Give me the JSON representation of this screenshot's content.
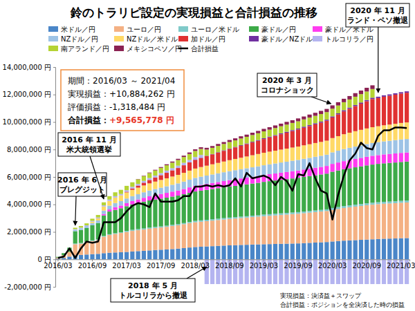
{
  "chart_data": {
    "type": "bar",
    "title": "鈴のトラリピ設定の実現損益と合計損益の推移",
    "stacked": true,
    "grid": false,
    "legend": "top",
    "categories": [
      "2016/03",
      null,
      null,
      null,
      null,
      null,
      "2016/09",
      null,
      null,
      null,
      null,
      null,
      "2017/03",
      null,
      null,
      null,
      null,
      null,
      "2017/09",
      null,
      null,
      null,
      null,
      null,
      "2018/03",
      null,
      null,
      null,
      null,
      null,
      "2018/09",
      null,
      null,
      null,
      null,
      null,
      "2019/03",
      null,
      null,
      null,
      null,
      null,
      "2019/09",
      null,
      null,
      null,
      null,
      null,
      "2020/03",
      null,
      null,
      null,
      null,
      null,
      "2020/09",
      null,
      null,
      null,
      null,
      null,
      "2021/03",
      null
    ],
    "ylim": [
      -2000000,
      14000000
    ],
    "yticks": [
      {
        "value": -2000000,
        "label": "-2,000,000 円"
      },
      {
        "value": 0,
        "label": "0 円"
      },
      {
        "value": 2000000,
        "label": "2,000,000 円"
      },
      {
        "value": 4000000,
        "label": "4,000,000 円"
      },
      {
        "value": 6000000,
        "label": "6,000,000 円"
      },
      {
        "value": 8000000,
        "label": "8,000,000 円"
      },
      {
        "value": 10000000,
        "label": "10,000,000 円"
      },
      {
        "value": 12000000,
        "label": "12,000,000 円"
      },
      {
        "value": 14000000,
        "label": "14,000,000 円"
      }
    ],
    "series": [
      {
        "name": "米ドル／円",
        "color": "#4a86c8",
        "values": [
          50000,
          100000,
          200000,
          300000,
          320000,
          350000,
          380000,
          400000,
          450000,
          480000,
          500000,
          520000,
          540000,
          570000,
          600000,
          620000,
          650000,
          680000,
          700000,
          720000,
          750000,
          780000,
          820000,
          860000,
          900000,
          920000,
          940000,
          960000,
          980000,
          1000000,
          1020000,
          1030000,
          1050000,
          1060000,
          1080000,
          1090000,
          1100000,
          1110000,
          1120000,
          1130000,
          1140000,
          1150000,
          1160000,
          1180000,
          1200000,
          1220000,
          1240000,
          1260000,
          1300000,
          1330000,
          1360000,
          1380000,
          1400000,
          1420000,
          1440000,
          1460000,
          1480000,
          1500000,
          1510000,
          1520000,
          1540000,
          1550000
        ]
      },
      {
        "name": "ユーロ／円",
        "color": "#f4b183",
        "values": [
          80000,
          200000,
          350000,
          800000,
          820000,
          880000,
          950000,
          1000000,
          1200000,
          1300000,
          1350000,
          1400000,
          1450000,
          1500000,
          1520000,
          1550000,
          1580000,
          1600000,
          1620000,
          1650000,
          1680000,
          1700000,
          1740000,
          1780000,
          1800000,
          1820000,
          1840000,
          1860000,
          1880000,
          1900000,
          1920000,
          1940000,
          1960000,
          1980000,
          2000000,
          2020000,
          2040000,
          2060000,
          2080000,
          2100000,
          2120000,
          2140000,
          2160000,
          2180000,
          2200000,
          2220000,
          2240000,
          2260000,
          2300000,
          2340000,
          2380000,
          2410000,
          2440000,
          2470000,
          2500000,
          2520000,
          2540000,
          2550000,
          2560000,
          2570000,
          2580000,
          2590000
        ]
      },
      {
        "name": "ユーロ／米ドル",
        "color": "#7fcac9",
        "values": [
          0,
          0,
          0,
          50000,
          50000,
          50000,
          50000,
          50000,
          50000,
          50000,
          50000,
          50000,
          80000,
          80000,
          80000,
          80000,
          80000,
          80000,
          80000,
          80000,
          80000,
          80000,
          80000,
          80000,
          100000,
          100000,
          100000,
          100000,
          100000,
          100000,
          100000,
          100000,
          100000,
          100000,
          100000,
          100000,
          120000,
          120000,
          120000,
          120000,
          120000,
          120000,
          120000,
          120000,
          120000,
          120000,
          120000,
          120000,
          140000,
          140000,
          140000,
          140000,
          140000,
          140000,
          140000,
          140000,
          140000,
          140000,
          140000,
          140000,
          140000,
          140000
        ]
      },
      {
        "name": "豪ドル／円",
        "color": "#3daa48",
        "values": [
          50000,
          150000,
          300000,
          900000,
          950000,
          1000000,
          1100000,
          1200000,
          1500000,
          1650000,
          1700000,
          1750000,
          1800000,
          1850000,
          1900000,
          1950000,
          1980000,
          2000000,
          2020000,
          2040000,
          2060000,
          2080000,
          2100000,
          2120000,
          2140000,
          2160000,
          2180000,
          2200000,
          2220000,
          2240000,
          2260000,
          2280000,
          2300000,
          2320000,
          2340000,
          2360000,
          2380000,
          2400000,
          2420000,
          2440000,
          2460000,
          2480000,
          2500000,
          2520000,
          2540000,
          2560000,
          2580000,
          2600000,
          2640000,
          2660000,
          2680000,
          2700000,
          2720000,
          2740000,
          2760000,
          2780000,
          2790000,
          2800000,
          2810000,
          2820000,
          2830000,
          2840000
        ]
      },
      {
        "name": "豪ドル／米ドル",
        "color": "#ff3cf0",
        "values": [
          0,
          0,
          0,
          0,
          0,
          0,
          0,
          0,
          100000,
          150000,
          200000,
          200000,
          220000,
          240000,
          260000,
          280000,
          300000,
          320000,
          340000,
          350000,
          360000,
          370000,
          380000,
          400000,
          410000,
          420000,
          430000,
          440000,
          450000,
          460000,
          470000,
          480000,
          480000,
          490000,
          490000,
          500000,
          500000,
          510000,
          510000,
          520000,
          520000,
          530000,
          530000,
          540000,
          540000,
          550000,
          550000,
          560000,
          570000,
          580000,
          590000,
          600000,
          610000,
          620000,
          630000,
          640000,
          640000,
          650000,
          650000,
          660000,
          660000,
          660000
        ]
      },
      {
        "name": "NZドル／円",
        "color": "#9dc3e6",
        "values": [
          0,
          0,
          0,
          100000,
          120000,
          140000,
          160000,
          180000,
          250000,
          280000,
          300000,
          320000,
          340000,
          360000,
          380000,
          400000,
          420000,
          440000,
          460000,
          480000,
          500000,
          520000,
          540000,
          560000,
          580000,
          600000,
          610000,
          620000,
          630000,
          640000,
          650000,
          660000,
          670000,
          680000,
          690000,
          700000,
          710000,
          720000,
          730000,
          740000,
          750000,
          760000,
          770000,
          780000,
          790000,
          800000,
          810000,
          820000,
          840000,
          860000,
          880000,
          890000,
          900000,
          910000,
          920000,
          930000,
          940000,
          950000,
          960000,
          970000,
          980000,
          980000
        ]
      },
      {
        "name": "NZドル／米ドル",
        "color": "#ffd966",
        "values": [
          0,
          0,
          0,
          0,
          0,
          0,
          100000,
          150000,
          300000,
          350000,
          400000,
          420000,
          440000,
          460000,
          480000,
          500000,
          520000,
          540000,
          560000,
          580000,
          600000,
          620000,
          640000,
          660000,
          680000,
          700000,
          720000,
          740000,
          760000,
          780000,
          800000,
          820000,
          840000,
          860000,
          880000,
          900000,
          910000,
          920000,
          930000,
          940000,
          950000,
          960000,
          970000,
          980000,
          990000,
          1000000,
          1010000,
          1020000,
          1040000,
          1060000,
          1080000,
          1100000,
          1120000,
          1130000,
          1140000,
          1150000,
          1160000,
          1170000,
          1180000,
          1190000,
          1200000,
          1210000
        ]
      },
      {
        "name": "加ドル／円",
        "color": "#e03131",
        "values": [
          0,
          0,
          0,
          0,
          0,
          0,
          0,
          0,
          0,
          0,
          0,
          0,
          50000,
          100000,
          150000,
          200000,
          250000,
          300000,
          350000,
          400000,
          450000,
          500000,
          550000,
          600000,
          630000,
          660000,
          690000,
          720000,
          750000,
          780000,
          810000,
          840000,
          870000,
          900000,
          930000,
          960000,
          1000000,
          1040000,
          1080000,
          1120000,
          1160000,
          1200000,
          1240000,
          1280000,
          1320000,
          1360000,
          1400000,
          1450000,
          1500000,
          1580000,
          1660000,
          1740000,
          1820000,
          1900000,
          1980000,
          2050000,
          2050000,
          2080000,
          2100000,
          2120000,
          2140000,
          2160000
        ]
      },
      {
        "name": "豪ドル／NZドル",
        "color": "#7030a0",
        "values": [
          0,
          0,
          0,
          0,
          0,
          0,
          0,
          0,
          0,
          0,
          0,
          0,
          0,
          0,
          0,
          0,
          0,
          0,
          0,
          0,
          0,
          0,
          0,
          0,
          20000,
          20000,
          30000,
          30000,
          30000,
          40000,
          40000,
          40000,
          50000,
          50000,
          50000,
          60000,
          60000,
          60000,
          60000,
          70000,
          70000,
          70000,
          70000,
          80000,
          80000,
          80000,
          80000,
          80000,
          80000,
          80000,
          90000,
          90000,
          90000,
          90000,
          90000,
          100000,
          100000,
          100000,
          100000,
          100000,
          100000,
          100000
        ]
      },
      {
        "name": "トルコリラ／円",
        "color": "#b4b4f0",
        "values": [
          0,
          0,
          0,
          50000,
          50000,
          60000,
          60000,
          70000,
          80000,
          90000,
          100000,
          100000,
          110000,
          120000,
          120000,
          130000,
          140000,
          140000,
          150000,
          160000,
          160000,
          170000,
          180000,
          180000,
          190000,
          200000,
          -1800000,
          -1800000,
          -1800000,
          -1800000,
          -1800000,
          -1800000,
          -1800000,
          -1800000,
          -1800000,
          -1800000,
          -1800000,
          -1800000,
          -1800000,
          -1800000,
          -1800000,
          -1800000,
          -1800000,
          -1800000,
          -1800000,
          -1800000,
          -1800000,
          -1800000,
          -1800000,
          -1800000,
          -1800000,
          -1800000,
          -1800000,
          -1800000,
          -1800000,
          -1800000,
          -1800000,
          -1800000,
          -1800000,
          -1800000,
          -1800000,
          -1800000
        ]
      },
      {
        "name": "南アランド／円",
        "color": "#b5d334",
        "values": [
          0,
          0,
          0,
          100000,
          120000,
          140000,
          160000,
          180000,
          220000,
          250000,
          280000,
          300000,
          320000,
          330000,
          340000,
          350000,
          360000,
          370000,
          380000,
          390000,
          400000,
          410000,
          420000,
          430000,
          440000,
          440000,
          450000,
          450000,
          460000,
          460000,
          470000,
          470000,
          480000,
          480000,
          490000,
          490000,
          500000,
          500000,
          510000,
          510000,
          520000,
          520000,
          530000,
          530000,
          540000,
          540000,
          550000,
          550000,
          560000,
          570000,
          580000,
          590000,
          600000,
          610000,
          620000,
          630000,
          0,
          0,
          0,
          0,
          0,
          0
        ]
      },
      {
        "name": "メキシコペソ／円",
        "color": "#8b2252",
        "values": [
          0,
          0,
          0,
          0,
          0,
          0,
          0,
          0,
          0,
          0,
          0,
          0,
          0,
          0,
          20000,
          30000,
          40000,
          50000,
          60000,
          70000,
          80000,
          90000,
          100000,
          110000,
          120000,
          120000,
          130000,
          130000,
          140000,
          140000,
          150000,
          150000,
          160000,
          160000,
          170000,
          170000,
          180000,
          180000,
          190000,
          190000,
          200000,
          200000,
          210000,
          210000,
          220000,
          220000,
          230000,
          230000,
          240000,
          240000,
          250000,
          250000,
          260000,
          260000,
          270000,
          270000,
          0,
          0,
          0,
          0,
          0,
          0
        ]
      },
      {
        "name": "合計損益",
        "type": "line",
        "color": "#000000",
        "values": [
          100000,
          200000,
          800000,
          100000,
          800000,
          1300000,
          1200000,
          1300000,
          2700000,
          2700000,
          2700000,
          3000000,
          3500000,
          3900000,
          4100000,
          4000000,
          3800000,
          4800000,
          4200000,
          4200000,
          4200000,
          4300000,
          4600000,
          4600000,
          5300000,
          5300000,
          5400000,
          5300000,
          5400000,
          5300000,
          5400000,
          5900000,
          5300000,
          6300000,
          5900000,
          6000000,
          6100000,
          5900000,
          5400000,
          6000000,
          5700000,
          5000000,
          6200000,
          6100000,
          7000000,
          5900000,
          5000000,
          4800000,
          2900000,
          4700000,
          6100000,
          7200000,
          7700000,
          8500000,
          8100000,
          8000000,
          9000000,
          9400000,
          9400000,
          9600000,
          9600000,
          9565778
        ]
      }
    ],
    "summary": [
      {
        "label": "期間：",
        "value": "2016/03 ～ 2021/04"
      },
      {
        "label": "実現損益：",
        "value": "+10,884,262 円"
      },
      {
        "label": "評価損益：",
        "value": "-1,318,484 円"
      },
      {
        "label": "合計損益：",
        "value": "+9,565,778 円"
      }
    ],
    "annotations": [
      {
        "lines": [
          "2016 年 6 月",
          "ブレグジット"
        ]
      },
      {
        "lines": [
          "2016 年 11 月",
          "米大統領選挙"
        ]
      },
      {
        "lines": [
          "2018 年 5 月",
          "トルコリラから撤退"
        ]
      },
      {
        "lines": [
          "2020 年 3 月",
          "コロナショック"
        ]
      },
      {
        "lines": [
          "2020 年 11 月",
          "ランド・ペソ撤退"
        ]
      }
    ],
    "notes": [
      "実現損益：決済益＋スワップ",
      "合計損益：ポジションを全決済した時の損益"
    ]
  }
}
